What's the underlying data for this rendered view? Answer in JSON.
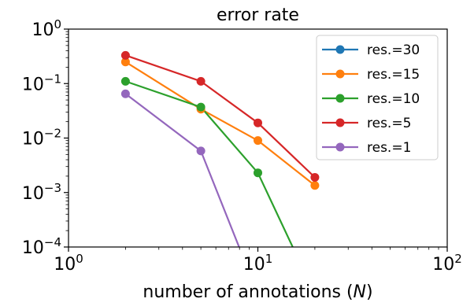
{
  "chart_data": {
    "type": "line",
    "title": "error rate",
    "xlabel_prefix": "number of annotations (",
    "xlabel_symbol": "N",
    "xlabel_suffix": ")",
    "ylabel": "",
    "xscale": "log",
    "yscale": "log",
    "xlim": [
      1,
      100
    ],
    "ylim": [
      0.0001,
      1
    ],
    "grid": false,
    "legend_position": "top-right",
    "x_ticks": [
      {
        "value": 1,
        "base": "10",
        "exp": "0"
      },
      {
        "value": 10,
        "base": "10",
        "exp": "1"
      },
      {
        "value": 100,
        "base": "10",
        "exp": "2"
      }
    ],
    "y_ticks": [
      {
        "value": 1,
        "base": "10",
        "exp": "0"
      },
      {
        "value": 0.1,
        "base": "10",
        "exp": "−1"
      },
      {
        "value": 0.01,
        "base": "10",
        "exp": "−2"
      },
      {
        "value": 0.001,
        "base": "10",
        "exp": "−3"
      },
      {
        "value": 0.0001,
        "base": "10",
        "exp": "−4"
      }
    ],
    "series": [
      {
        "name": "res.=30",
        "color": "#1f77b4",
        "x": [
          2,
          5,
          10,
          20
        ],
        "y": [
          0.0,
          0.0,
          0.0,
          0.0
        ]
      },
      {
        "name": "res.=15",
        "color": "#ff7f0e",
        "x": [
          2,
          5,
          10,
          20
        ],
        "y": [
          0.25,
          0.034,
          0.009,
          0.00135
        ]
      },
      {
        "name": "res.=10",
        "color": "#2ca02c",
        "x": [
          2,
          5,
          10,
          20
        ],
        "y": [
          0.11,
          0.037,
          0.0023,
          0.0
        ]
      },
      {
        "name": "res.=5",
        "color": "#d62728",
        "x": [
          2,
          5,
          10,
          20
        ],
        "y": [
          0.33,
          0.11,
          0.019,
          0.0019
        ]
      },
      {
        "name": "res.=1",
        "color": "#9467bd",
        "x": [
          2,
          5,
          10,
          20
        ],
        "y": [
          0.065,
          0.0058,
          0.0,
          0.0
        ]
      }
    ]
  }
}
